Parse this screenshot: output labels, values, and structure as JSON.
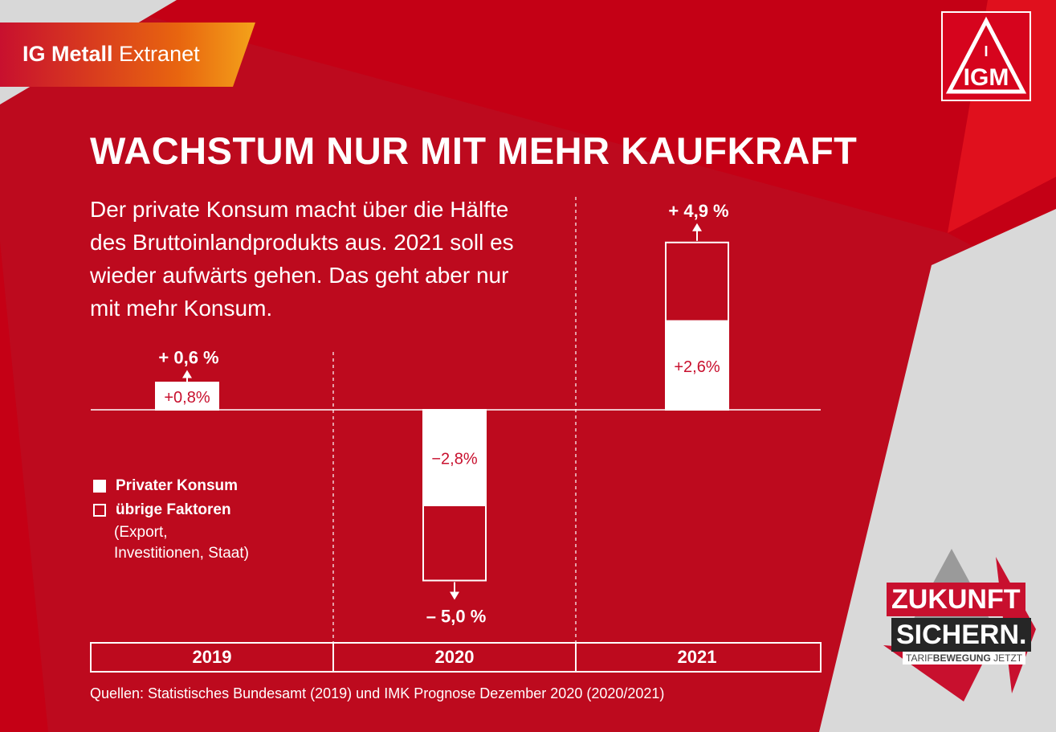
{
  "header": {
    "brand_bold": "IG Metall",
    "brand_light": "Extranet",
    "logo_text": "IGM"
  },
  "title": "WACHSTUM NUR MIT MEHR KAUFKRAFT",
  "intro": "Der private Konsum macht über die Hälfte des Bruttoinlandprodukts aus. 2021 soll es wieder aufwärts gehen. Das geht aber nur mit mehr Konsum.",
  "legend": {
    "filled": "Privater Konsum",
    "hollow": "übrige Faktoren",
    "note": "(Export, Investitionen, Staat)"
  },
  "source": "Quellen: Statistisches Bundesamt (2019) und IMK Prognose Dezember 2020 (2020/2021)",
  "campaign": {
    "line1": "ZUKUNFT",
    "line2": "SICHERN.",
    "sub_light": "TARIF",
    "sub_bold": "BEWEGUNG",
    "sub_end": "JETZT"
  },
  "colors": {
    "red": "#c8102e",
    "red_dark": "#b50d1f",
    "grey": "#d9d9d9",
    "white": "#ffffff"
  },
  "chart_data": {
    "type": "bar",
    "categories": [
      "2019",
      "2020",
      "2021"
    ],
    "series": [
      {
        "name": "Privater Konsum",
        "values": [
          0.8,
          -2.8,
          2.6
        ]
      }
    ],
    "totals": [
      0.6,
      -5.0,
      4.9
    ],
    "labels": {
      "component": [
        "+0,8%",
        "−2,8%",
        "+2,6%"
      ],
      "total": [
        "+ 0,6 %",
        "– 5,0 %",
        "+ 4,9 %"
      ]
    },
    "xlabel": "",
    "ylabel": ""
  }
}
